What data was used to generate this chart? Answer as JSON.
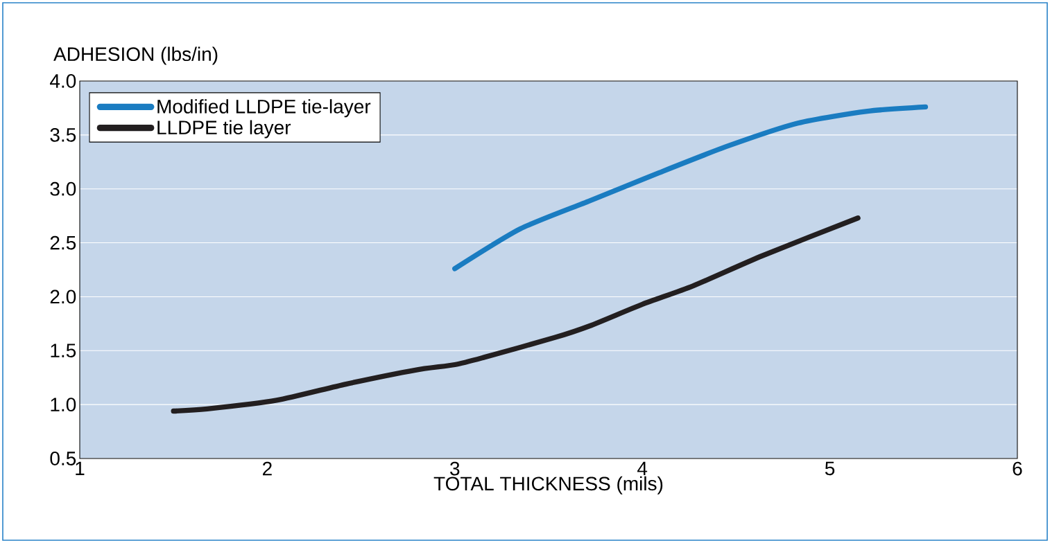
{
  "chart_data": {
    "type": "line",
    "xlabel": "TOTAL THICKNESS (mils)",
    "ylabel": "ADHESION (lbs/in)",
    "xlim": [
      1,
      6
    ],
    "xticks": [
      1,
      2,
      3,
      4,
      5,
      6
    ],
    "ylim": [
      0.5,
      4.0
    ],
    "yticks": [
      {
        "value": 0.5,
        "label": "0.5"
      },
      {
        "value": 1.0,
        "label": "1.0"
      },
      {
        "value": 1.5,
        "label": "1.5"
      },
      {
        "value": 2.0,
        "label": "2.0"
      },
      {
        "value": 2.5,
        "label": "2.5"
      },
      {
        "value": 3.0,
        "label": "3.0"
      },
      {
        "value": 3.5,
        "label": "3.5"
      },
      {
        "value": 4.0,
        "label": "4.0"
      }
    ],
    "grid": "y",
    "legend": "top left",
    "series": [
      {
        "name": "Modified LLDPE tie-layer",
        "color": "#1a7cc1",
        "x": [
          3.0,
          3.35,
          3.72,
          4.09,
          4.46,
          4.83,
          5.2,
          5.51
        ],
        "values": [
          2.26,
          2.63,
          2.89,
          3.15,
          3.4,
          3.61,
          3.72,
          3.76
        ]
      },
      {
        "name": "LLDPE tie layer",
        "color": "#231f20",
        "x": [
          1.5,
          1.68,
          2.05,
          2.42,
          2.79,
          3.0,
          3.16,
          3.53,
          3.72,
          4.0,
          4.27,
          4.64,
          5.15
        ],
        "values": [
          0.94,
          0.96,
          1.04,
          1.19,
          1.32,
          1.37,
          1.44,
          1.62,
          1.73,
          1.93,
          2.1,
          2.38,
          2.73
        ]
      }
    ]
  }
}
